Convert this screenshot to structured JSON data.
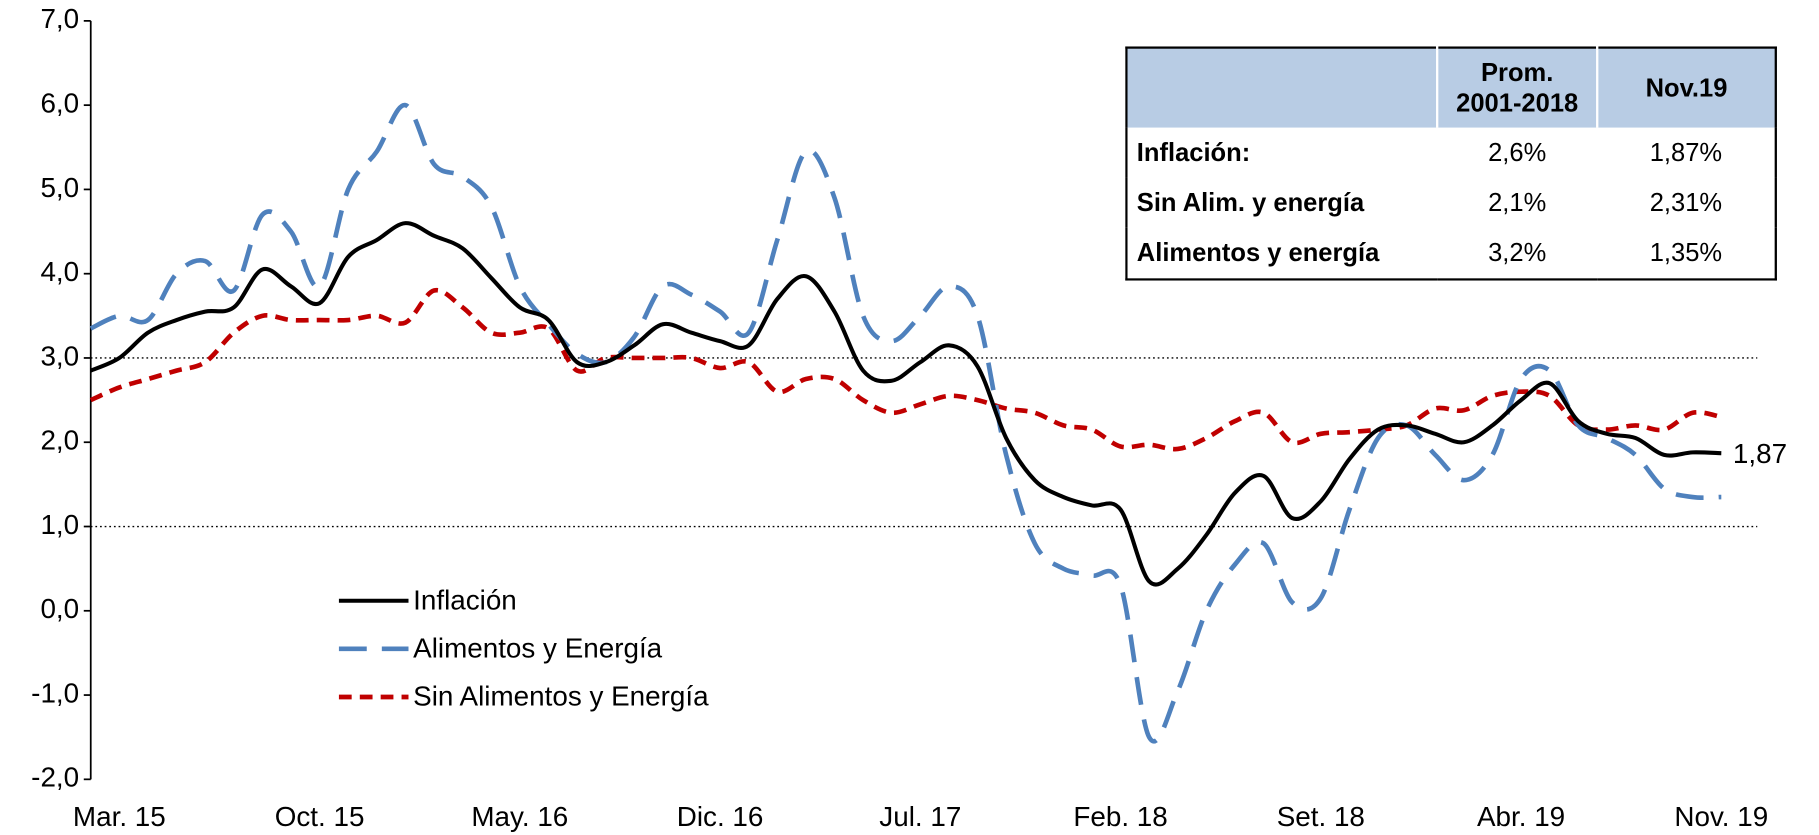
{
  "chart_data": {
    "type": "line",
    "categories": [
      null,
      "Mar. 15",
      null,
      null,
      null,
      null,
      null,
      null,
      "Oct. 15",
      null,
      null,
      null,
      null,
      null,
      null,
      "May. 16",
      null,
      null,
      null,
      null,
      null,
      null,
      "Dic. 16",
      null,
      null,
      null,
      null,
      null,
      null,
      "Jul. 17",
      null,
      null,
      null,
      null,
      null,
      null,
      "Feb. 18",
      null,
      null,
      null,
      null,
      null,
      null,
      "Set. 18",
      null,
      null,
      null,
      null,
      null,
      null,
      "Abr. 19",
      null,
      null,
      null,
      null,
      null,
      null,
      "Nov. 19"
    ],
    "series": [
      {
        "name": "Inflación",
        "color": "#000000",
        "dash": "solid",
        "values": [
          2.85,
          3.0,
          3.3,
          3.45,
          3.55,
          3.6,
          4.05,
          3.85,
          3.65,
          4.2,
          4.4,
          4.6,
          4.45,
          4.3,
          3.95,
          3.6,
          3.45,
          2.95,
          2.95,
          3.15,
          3.4,
          3.3,
          3.2,
          3.15,
          3.7,
          3.97,
          3.55,
          2.85,
          2.73,
          2.95,
          3.15,
          2.9,
          2.05,
          1.55,
          1.35,
          1.25,
          1.2,
          0.35,
          0.5,
          0.9,
          1.4,
          1.6,
          1.1,
          1.3,
          1.8,
          2.15,
          2.2,
          2.1,
          2.0,
          2.2,
          2.5,
          2.7,
          2.25,
          2.1,
          2.05,
          1.85,
          1.88,
          1.87
        ],
        "value_labels": [
          null,
          null,
          null,
          null,
          null,
          null,
          null,
          null,
          null,
          null,
          null,
          null,
          null,
          null,
          null,
          null,
          null,
          null,
          null,
          null,
          null,
          null,
          null,
          null,
          null,
          null,
          null,
          null,
          null,
          null,
          null,
          null,
          null,
          null,
          null,
          null,
          null,
          null,
          null,
          null,
          null,
          null,
          null,
          null,
          null,
          null,
          null,
          null,
          null,
          null,
          null,
          null,
          null,
          null,
          null,
          null,
          null,
          "1,87"
        ]
      },
      {
        "name": "Alimentos y Energía",
        "color": "#4f81bd",
        "dash": "long",
        "values": [
          3.35,
          3.5,
          3.45,
          4.0,
          4.15,
          3.8,
          4.7,
          4.5,
          3.85,
          5.0,
          5.45,
          6.0,
          5.3,
          5.15,
          4.8,
          3.85,
          3.4,
          3.05,
          2.95,
          3.25,
          3.85,
          3.75,
          3.55,
          3.3,
          4.4,
          5.45,
          4.9,
          3.5,
          3.2,
          3.5,
          3.85,
          3.5,
          1.85,
          0.8,
          0.5,
          0.42,
          0.3,
          -1.5,
          -0.95,
          0.0,
          0.55,
          0.8,
          0.1,
          0.15,
          1.2,
          2.05,
          2.2,
          1.85,
          1.55,
          1.85,
          2.75,
          2.85,
          2.2,
          2.05,
          1.85,
          1.45,
          1.35,
          1.35
        ]
      },
      {
        "name": "Sin Alimentos y Energía",
        "color": "#c00000",
        "dash": "short",
        "values": [
          2.5,
          2.65,
          2.75,
          2.85,
          2.95,
          3.3,
          3.5,
          3.45,
          3.45,
          3.45,
          3.5,
          3.42,
          3.8,
          3.6,
          3.3,
          3.3,
          3.35,
          2.85,
          3.0,
          3.0,
          3.0,
          3.0,
          2.88,
          2.95,
          2.6,
          2.75,
          2.75,
          2.5,
          2.35,
          2.45,
          2.55,
          2.5,
          2.4,
          2.35,
          2.2,
          2.15,
          1.95,
          1.97,
          1.92,
          2.05,
          2.25,
          2.35,
          2.0,
          2.1,
          2.12,
          2.15,
          2.2,
          2.4,
          2.38,
          2.55,
          2.6,
          2.55,
          2.2,
          2.15,
          2.2,
          2.15,
          2.35,
          2.3
        ]
      }
    ],
    "ylim": [
      -2,
      7
    ],
    "yticks": [
      {
        "value": -2,
        "label": "-2,0"
      },
      {
        "value": -1,
        "label": "-1,0"
      },
      {
        "value": 0,
        "label": "0,0"
      },
      {
        "value": 1,
        "label": "1,0"
      },
      {
        "value": 2,
        "label": "2,0"
      },
      {
        "value": 3,
        "label": "3,0"
      },
      {
        "value": 4,
        "label": "4,0"
      },
      {
        "value": 5,
        "label": "5,0"
      },
      {
        "value": 6,
        "label": "6,0"
      },
      {
        "value": 7,
        "label": "7,0"
      }
    ],
    "reference_lines": [
      3,
      1
    ],
    "legend": "lower-left",
    "table": {
      "header": [
        "Prom. 2001-2018",
        "Nov.19"
      ],
      "rows": [
        [
          "Inflación:",
          "2,6%",
          "1,87%"
        ],
        [
          "Sin Alim. y energía",
          "2,1%",
          "2,31%"
        ],
        [
          "Alimentos y energía",
          "3,2%",
          "1,35%"
        ]
      ]
    }
  }
}
